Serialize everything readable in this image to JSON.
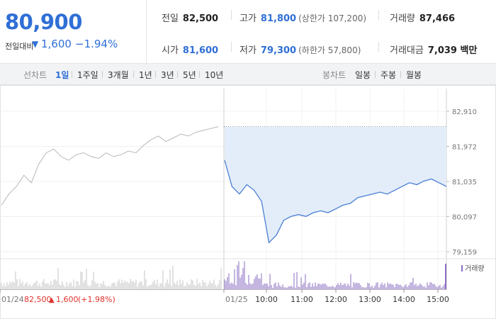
{
  "quote": {
    "price": "80,900",
    "diff_label": "전일대비",
    "diff_arrow": "▼",
    "diff_value": "1,600",
    "diff_percent": "−1.94%",
    "down_color": "#2f6fd6",
    "up_color": "#e0322c"
  },
  "stats": {
    "prev_close_label": "전일",
    "prev_close": "82,500",
    "high_label": "고가",
    "high": "81,800",
    "high_limit": "(상한가 107,200)",
    "volume_label": "거래량",
    "volume": "87,466",
    "open_label": "시가",
    "open": "81,600",
    "low_label": "저가",
    "low": "79,300",
    "low_limit": "(하한가 57,800)",
    "amount_label": "거래대금",
    "amount": "7,039 백만"
  },
  "toolbar": {
    "line_chart_label": "선차트",
    "line_periods": [
      "1일",
      "1주일",
      "3개월",
      "1년",
      "3년",
      "5년",
      "10년"
    ],
    "active_period": "1일",
    "candle_chart_label": "봉차트",
    "candle_periods": [
      "일봉",
      "주봉",
      "월봉"
    ]
  },
  "chart_data": {
    "type": "line",
    "y_ticks": [
      "82,910",
      "81,972",
      "81,035",
      "80,097",
      "79,159"
    ],
    "ylim": [
      79159,
      82910
    ],
    "x_ticks": [
      "01/24",
      "01/25",
      "10:00",
      "11:00",
      "12:00",
      "13:00",
      "14:00",
      "15:00"
    ],
    "prev_day_annotation": {
      "date": "01/24",
      "close": "82,500",
      "arrow": "▲",
      "change": "1,600",
      "change_pct": "(+1.98%)"
    },
    "legend": "거래량",
    "series": [
      {
        "segment": "prev_day",
        "color": "#b8b8b8",
        "values": [
          80400,
          80700,
          80900,
          81200,
          81000,
          81500,
          81800,
          81900,
          81700,
          81600,
          81750,
          81800,
          81700,
          81650,
          81800,
          81700,
          81750,
          81850,
          81800,
          82000,
          82150,
          82250,
          82100,
          82200,
          82300,
          82250,
          82350,
          82400,
          82450,
          82500
        ]
      },
      {
        "segment": "today",
        "color": "#4a7fd4",
        "values": [
          81600,
          80900,
          80700,
          80950,
          80800,
          80500,
          79400,
          79600,
          80000,
          80100,
          80150,
          80100,
          80200,
          80250,
          80200,
          80300,
          80400,
          80450,
          80600,
          80650,
          80700,
          80750,
          80700,
          80800,
          80900,
          81000,
          80950,
          81050,
          81100,
          81000,
          80900
        ]
      }
    ],
    "prev_close_line": 82500
  }
}
